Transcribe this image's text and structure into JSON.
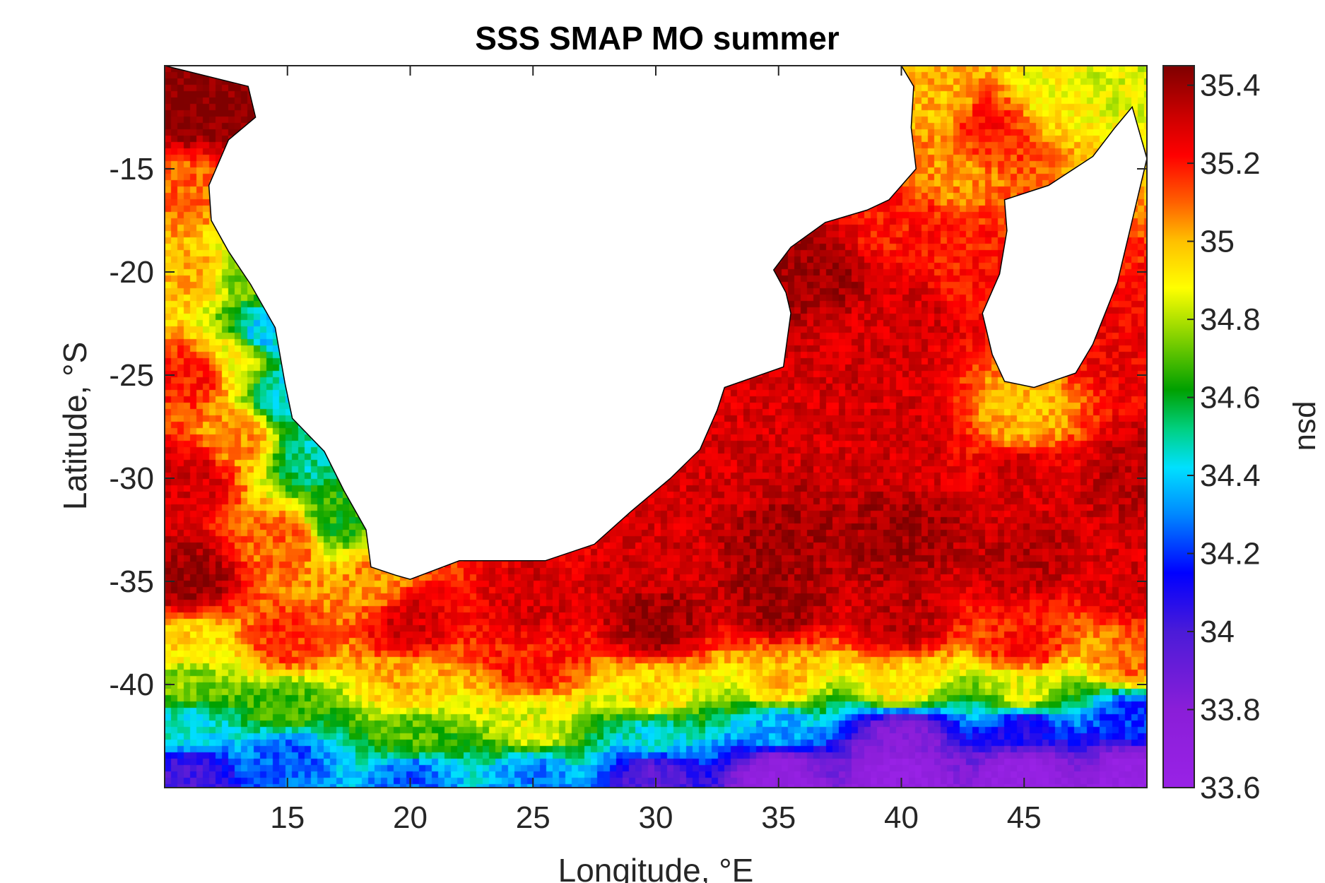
{
  "chart_data": {
    "type": "heatmap",
    "title": "SSS SMAP MO summer",
    "xlabel": "Longitude, °E",
    "ylabel": "Latitude, °S",
    "colorbar_label": "psu",
    "xlim": [
      10,
      50
    ],
    "ylim": [
      -45,
      -10
    ],
    "xticks": [
      {
        "value": 15,
        "label": "15"
      },
      {
        "value": 20,
        "label": "20"
      },
      {
        "value": 25,
        "label": "25"
      },
      {
        "value": 30,
        "label": "30"
      },
      {
        "value": 35,
        "label": "35"
      },
      {
        "value": 40,
        "label": "40"
      },
      {
        "value": 45,
        "label": "45"
      }
    ],
    "yticks": [
      {
        "value": -15,
        "label": "-15"
      },
      {
        "value": -20,
        "label": "-20"
      },
      {
        "value": -25,
        "label": "-25"
      },
      {
        "value": -30,
        "label": "-30"
      },
      {
        "value": -35,
        "label": "-35"
      },
      {
        "value": -40,
        "label": "-40"
      }
    ],
    "clim": [
      33.6,
      35.45
    ],
    "colorbar_ticks": [
      {
        "value": 35.4,
        "label": "35.4"
      },
      {
        "value": 35.2,
        "label": "35.2"
      },
      {
        "value": 35.0,
        "label": "35"
      },
      {
        "value": 34.8,
        "label": "34.8"
      },
      {
        "value": 34.6,
        "label": "34.6"
      },
      {
        "value": 34.4,
        "label": "34.4"
      },
      {
        "value": 34.2,
        "label": "34.2"
      },
      {
        "value": 34.0,
        "label": "34"
      },
      {
        "value": 33.8,
        "label": "33.8"
      },
      {
        "value": 33.6,
        "label": "33.6"
      }
    ],
    "colormap": [
      {
        "value": 33.6,
        "color": "#9922e6"
      },
      {
        "value": 33.8,
        "color": "#8a1ed8"
      },
      {
        "value": 34.0,
        "color": "#4b1bd8"
      },
      {
        "value": 34.15,
        "color": "#0000ff"
      },
      {
        "value": 34.3,
        "color": "#0088ff"
      },
      {
        "value": 34.42,
        "color": "#00e0ff"
      },
      {
        "value": 34.52,
        "color": "#00d080"
      },
      {
        "value": 34.62,
        "color": "#00a000"
      },
      {
        "value": 34.75,
        "color": "#80d000"
      },
      {
        "value": 34.88,
        "color": "#ffff00"
      },
      {
        "value": 35.0,
        "color": "#ffc000"
      },
      {
        "value": 35.1,
        "color": "#ff6000"
      },
      {
        "value": 35.22,
        "color": "#ff0000"
      },
      {
        "value": 35.32,
        "color": "#cc0000"
      },
      {
        "value": 35.45,
        "color": "#7f0000"
      }
    ],
    "land_regions": [
      {
        "name": "africa",
        "outline": [
          [
            13.4,
            -11.0
          ],
          [
            13.7,
            -12.5
          ],
          [
            12.6,
            -13.6
          ],
          [
            11.8,
            -15.8
          ],
          [
            11.9,
            -17.5
          ],
          [
            12.6,
            -19.0
          ],
          [
            13.5,
            -20.6
          ],
          [
            14.5,
            -22.7
          ],
          [
            14.9,
            -25.4
          ],
          [
            15.2,
            -27.1
          ],
          [
            16.5,
            -28.7
          ],
          [
            17.3,
            -30.6
          ],
          [
            18.2,
            -32.5
          ],
          [
            18.4,
            -34.3
          ],
          [
            19.4,
            -34.7
          ],
          [
            20.0,
            -34.9
          ],
          [
            22.0,
            -34.0
          ],
          [
            25.5,
            -34.0
          ],
          [
            27.5,
            -33.2
          ],
          [
            29.0,
            -31.6
          ],
          [
            30.6,
            -30.0
          ],
          [
            31.8,
            -28.6
          ],
          [
            32.5,
            -26.7
          ],
          [
            32.8,
            -25.6
          ],
          [
            35.2,
            -24.6
          ],
          [
            35.5,
            -22.0
          ],
          [
            35.3,
            -21.0
          ],
          [
            34.8,
            -19.9
          ],
          [
            35.5,
            -18.8
          ],
          [
            36.9,
            -17.6
          ],
          [
            38.6,
            -17.0
          ],
          [
            39.5,
            -16.5
          ],
          [
            40.6,
            -15.0
          ],
          [
            40.4,
            -13.0
          ],
          [
            40.5,
            -11.0
          ],
          [
            40.0,
            -10.0
          ],
          [
            10.0,
            -10.0
          ]
        ]
      },
      {
        "name": "madagascar",
        "outline": [
          [
            49.4,
            -12.0
          ],
          [
            50.0,
            -14.5
          ],
          [
            49.4,
            -17.5
          ],
          [
            48.8,
            -20.5
          ],
          [
            47.8,
            -23.5
          ],
          [
            47.1,
            -24.9
          ],
          [
            45.4,
            -25.6
          ],
          [
            44.2,
            -25.3
          ],
          [
            43.7,
            -24.0
          ],
          [
            43.3,
            -22.0
          ],
          [
            44.0,
            -20.1
          ],
          [
            44.3,
            -18.0
          ],
          [
            44.2,
            -16.5
          ],
          [
            46.0,
            -15.8
          ],
          [
            47.8,
            -14.4
          ],
          [
            48.7,
            -13.0
          ]
        ]
      }
    ],
    "salinity_anchors": [
      {
        "lon": 11,
        "lat": -12,
        "psu": 35.45
      },
      {
        "lon": 15,
        "lat": -12,
        "psu": 35.45
      },
      {
        "lon": 10.5,
        "lat": -16,
        "psu": 35.1
      },
      {
        "lon": 11,
        "lat": -20,
        "psu": 35.0
      },
      {
        "lon": 11,
        "lat": -25,
        "psu": 35.2
      },
      {
        "lon": 11,
        "lat": -30,
        "psu": 35.3
      },
      {
        "lon": 11,
        "lat": -35,
        "psu": 35.4
      },
      {
        "lon": 11,
        "lat": -38,
        "psu": 34.95
      },
      {
        "lon": 11,
        "lat": -40,
        "psu": 34.75
      },
      {
        "lon": 11,
        "lat": -42,
        "psu": 34.45
      },
      {
        "lon": 11,
        "lat": -44.5,
        "psu": 34.0
      },
      {
        "lon": 13.5,
        "lat": -20,
        "psu": 34.75
      },
      {
        "lon": 14,
        "lat": -23,
        "psu": 34.4
      },
      {
        "lon": 15,
        "lat": -26,
        "psu": 34.45
      },
      {
        "lon": 16,
        "lat": -29,
        "psu": 34.5
      },
      {
        "lon": 17,
        "lat": -32,
        "psu": 34.65
      },
      {
        "lon": 18.5,
        "lat": -35,
        "psu": 35.05
      },
      {
        "lon": 15,
        "lat": -33,
        "psu": 35.1
      },
      {
        "lon": 13,
        "lat": -28,
        "psu": 35.05
      },
      {
        "lon": 13,
        "lat": -24,
        "psu": 34.9
      },
      {
        "lon": 15,
        "lat": -38,
        "psu": 35.15
      },
      {
        "lon": 15,
        "lat": -41,
        "psu": 34.7
      },
      {
        "lon": 15,
        "lat": -43.5,
        "psu": 34.25
      },
      {
        "lon": 20,
        "lat": -37,
        "psu": 35.3
      },
      {
        "lon": 20,
        "lat": -40,
        "psu": 35.0
      },
      {
        "lon": 20,
        "lat": -42.5,
        "psu": 34.7
      },
      {
        "lon": 20,
        "lat": -44.5,
        "psu": 34.25
      },
      {
        "lon": 25,
        "lat": -36,
        "psu": 35.3
      },
      {
        "lon": 25,
        "lat": -39,
        "psu": 35.2
      },
      {
        "lon": 25,
        "lat": -42,
        "psu": 34.85
      },
      {
        "lon": 25,
        "lat": -44.5,
        "psu": 34.3
      },
      {
        "lon": 30,
        "lat": -34,
        "psu": 35.3
      },
      {
        "lon": 30,
        "lat": -37,
        "psu": 35.4
      },
      {
        "lon": 30,
        "lat": -40.5,
        "psu": 34.95
      },
      {
        "lon": 30,
        "lat": -42.5,
        "psu": 34.45
      },
      {
        "lon": 30,
        "lat": -44.5,
        "psu": 33.95
      },
      {
        "lon": 33,
        "lat": -30,
        "psu": 35.3
      },
      {
        "lon": 35,
        "lat": -33,
        "psu": 35.4
      },
      {
        "lon": 35,
        "lat": -36,
        "psu": 35.4
      },
      {
        "lon": 35,
        "lat": -40,
        "psu": 35.0
      },
      {
        "lon": 35,
        "lat": -42,
        "psu": 34.35
      },
      {
        "lon": 35,
        "lat": -44.5,
        "psu": 33.7
      },
      {
        "lon": 36.5,
        "lat": -20,
        "psu": 35.4
      },
      {
        "lon": 38,
        "lat": -24,
        "psu": 35.3
      },
      {
        "lon": 40,
        "lat": -18,
        "psu": 35.2
      },
      {
        "lon": 40.5,
        "lat": -22,
        "psu": 35.3
      },
      {
        "lon": 40,
        "lat": -28,
        "psu": 35.3
      },
      {
        "lon": 40,
        "lat": -33,
        "psu": 35.4
      },
      {
        "lon": 40,
        "lat": -37,
        "psu": 35.35
      },
      {
        "lon": 40,
        "lat": -40,
        "psu": 34.95
      },
      {
        "lon": 40,
        "lat": -42.5,
        "psu": 33.8
      },
      {
        "lon": 40,
        "lat": -44.5,
        "psu": 33.65
      },
      {
        "lon": 41.5,
        "lat": -12,
        "psu": 35.0
      },
      {
        "lon": 42,
        "lat": -15,
        "psu": 35.05
      },
      {
        "lon": 43.5,
        "lat": -13,
        "psu": 35.2
      },
      {
        "lon": 46,
        "lat": -11,
        "psu": 34.9
      },
      {
        "lon": 48.5,
        "lat": -10.5,
        "psu": 34.85
      },
      {
        "lon": 42.5,
        "lat": -20,
        "psu": 35.2
      },
      {
        "lon": 45,
        "lat": -27,
        "psu": 35.0
      },
      {
        "lon": 45,
        "lat": -30,
        "psu": 35.3
      },
      {
        "lon": 45,
        "lat": -34,
        "psu": 35.35
      },
      {
        "lon": 45,
        "lat": -38,
        "psu": 35.2
      },
      {
        "lon": 45,
        "lat": -40.5,
        "psu": 34.85
      },
      {
        "lon": 45,
        "lat": -42,
        "psu": 34.1
      },
      {
        "lon": 45,
        "lat": -44.5,
        "psu": 33.65
      },
      {
        "lon": 49.5,
        "lat": -24,
        "psu": 35.25
      },
      {
        "lon": 49.5,
        "lat": -30,
        "psu": 35.35
      },
      {
        "lon": 49.5,
        "lat": -35,
        "psu": 35.3
      },
      {
        "lon": 49.5,
        "lat": -39,
        "psu": 35.1
      },
      {
        "lon": 49.5,
        "lat": -41.5,
        "psu": 34.2
      },
      {
        "lon": 49.5,
        "lat": -44.5,
        "psu": 33.65
      }
    ]
  }
}
